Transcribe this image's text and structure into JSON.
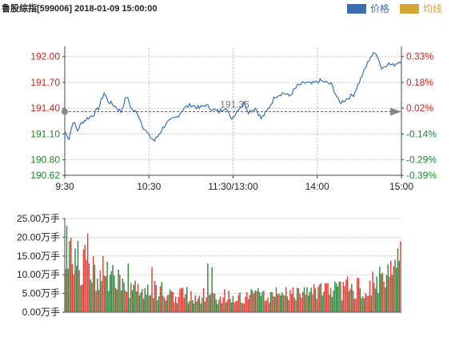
{
  "title": "鲁股综指[599006] 2018-01-09 15:00:00",
  "legend": [
    {
      "label": "价格",
      "color": "#3b6fb0"
    },
    {
      "label": "均线",
      "color": "#d6a634"
    }
  ],
  "colors": {
    "price_line": "#3b6fb0",
    "up": "#e0403a",
    "down": "#2e8b3e",
    "ref_marker": "#888888",
    "grid": "#bdbdbd"
  },
  "chart_data": [
    {
      "type": "line",
      "name": "price",
      "ref_price": 191.36,
      "ref_label": "191.36",
      "ylim": [
        190.62,
        192.1
      ],
      "y_ticks_left": [
        {
          "value": 192.0,
          "label": "192.00",
          "dir": "up"
        },
        {
          "value": 191.7,
          "label": "191.70",
          "dir": "up"
        },
        {
          "value": 191.4,
          "label": "191.40",
          "dir": "up"
        },
        {
          "value": 191.1,
          "label": "191.10",
          "dir": "down"
        },
        {
          "value": 190.8,
          "label": "190.80",
          "dir": "down"
        },
        {
          "value": 190.62,
          "label": "190.62",
          "dir": "down"
        }
      ],
      "y_ticks_right": [
        {
          "value": 192.0,
          "label": "0.33%",
          "dir": "up"
        },
        {
          "value": 191.7,
          "label": "0.18%",
          "dir": "up"
        },
        {
          "value": 191.4,
          "label": "0.02%",
          "dir": "up"
        },
        {
          "value": 191.1,
          "label": "-0.14%",
          "dir": "down"
        },
        {
          "value": 190.8,
          "label": "-0.29%",
          "dir": "down"
        },
        {
          "value": 190.62,
          "label": "-0.39%",
          "dir": "down"
        }
      ],
      "x_ticks": [
        {
          "index": 0,
          "label": "9:30"
        },
        {
          "index": 60,
          "label": "10:30"
        },
        {
          "index": 120,
          "label": "11:30/13:00"
        },
        {
          "index": 180,
          "label": "14:00"
        },
        {
          "index": 240,
          "label": "15:00"
        }
      ],
      "x_count": 241,
      "keypoints": [
        [
          0,
          191.13
        ],
        [
          3,
          191.05
        ],
        [
          6,
          191.25
        ],
        [
          9,
          191.14
        ],
        [
          12,
          191.23
        ],
        [
          16,
          191.28
        ],
        [
          20,
          191.32
        ],
        [
          24,
          191.4
        ],
        [
          28,
          191.58
        ],
        [
          31,
          191.48
        ],
        [
          36,
          191.42
        ],
        [
          40,
          191.36
        ],
        [
          44,
          191.54
        ],
        [
          48,
          191.38
        ],
        [
          52,
          191.34
        ],
        [
          56,
          191.18
        ],
        [
          60,
          191.08
        ],
        [
          64,
          191.02
        ],
        [
          68,
          191.12
        ],
        [
          72,
          191.22
        ],
        [
          76,
          191.26
        ],
        [
          80,
          191.3
        ],
        [
          85,
          191.4
        ],
        [
          90,
          191.44
        ],
        [
          96,
          191.4
        ],
        [
          100,
          191.44
        ],
        [
          106,
          191.38
        ],
        [
          110,
          191.36
        ],
        [
          115,
          191.42
        ],
        [
          118,
          191.28
        ],
        [
          120,
          191.3
        ],
        [
          124,
          191.4
        ],
        [
          128,
          191.46
        ],
        [
          131,
          191.36
        ],
        [
          136,
          191.4
        ],
        [
          140,
          191.28
        ],
        [
          144,
          191.36
        ],
        [
          150,
          191.54
        ],
        [
          156,
          191.58
        ],
        [
          160,
          191.54
        ],
        [
          166,
          191.66
        ],
        [
          172,
          191.7
        ],
        [
          176,
          191.68
        ],
        [
          182,
          191.72
        ],
        [
          190,
          191.68
        ],
        [
          196,
          191.46
        ],
        [
          202,
          191.52
        ],
        [
          206,
          191.56
        ],
        [
          212,
          191.78
        ],
        [
          218,
          192.0
        ],
        [
          222,
          192.05
        ],
        [
          226,
          191.86
        ],
        [
          230,
          191.92
        ],
        [
          234,
          191.9
        ],
        [
          240,
          191.96
        ]
      ]
    },
    {
      "type": "bar",
      "name": "volume",
      "ylabel": "",
      "ylim": [
        0,
        25
      ],
      "y_ticks": [
        {
          "value": 25,
          "label": "25.00万手"
        },
        {
          "value": 20,
          "label": "20.00万手"
        },
        {
          "value": 15,
          "label": "15.00万手"
        },
        {
          "value": 10,
          "label": "10.00万手"
        },
        {
          "value": 5,
          "label": "5.00万手"
        },
        {
          "value": 0,
          "label": "0.00万手"
        }
      ],
      "profile": [
        [
          0,
          16
        ],
        [
          5,
          15
        ],
        [
          12,
          14
        ],
        [
          20,
          12
        ],
        [
          30,
          11
        ],
        [
          40,
          8
        ],
        [
          50,
          7
        ],
        [
          60,
          7
        ],
        [
          70,
          6
        ],
        [
          80,
          5
        ],
        [
          100,
          5
        ],
        [
          120,
          4.5
        ],
        [
          140,
          5
        ],
        [
          160,
          5
        ],
        [
          180,
          6
        ],
        [
          200,
          7
        ],
        [
          215,
          8
        ],
        [
          225,
          9
        ],
        [
          232,
          11
        ],
        [
          240,
          13
        ]
      ],
      "spikes": [
        [
          1,
          23
        ],
        [
          3,
          19
        ],
        [
          9,
          19
        ],
        [
          14,
          18
        ],
        [
          16,
          21
        ],
        [
          27,
          15
        ],
        [
          45,
          13
        ],
        [
          62,
          12
        ],
        [
          102,
          13
        ],
        [
          105,
          12
        ],
        [
          236,
          14
        ],
        [
          238,
          17
        ],
        [
          240,
          19
        ]
      ]
    }
  ]
}
